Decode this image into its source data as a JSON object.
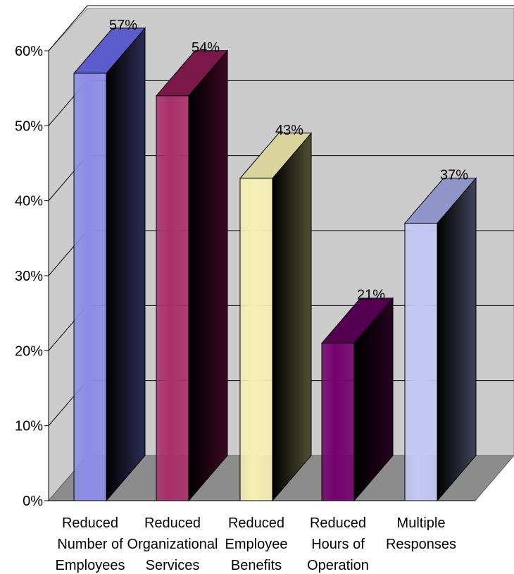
{
  "chart_data": {
    "type": "bar",
    "title": "",
    "xlabel": "",
    "ylabel": "",
    "categories": [
      [
        "Reduced",
        "Number of",
        "Employees"
      ],
      [
        "Reduced",
        "Organizational",
        "Services"
      ],
      [
        "Reduced",
        "Employee",
        "Benefits"
      ],
      [
        "Reduced",
        "Hours of",
        "Operation"
      ],
      [
        "Multiple",
        "Responses"
      ]
    ],
    "values": [
      57,
      54,
      43,
      21,
      37
    ],
    "data_labels": [
      "57%",
      "54%",
      "43%",
      "21%",
      "37%"
    ],
    "ylim": [
      0,
      60
    ],
    "yticks": [
      0,
      10,
      20,
      30,
      40,
      50,
      60
    ],
    "ytick_labels": [
      "0%",
      "10%",
      "20%",
      "30%",
      "40%",
      "50%",
      "60%"
    ],
    "grid": true,
    "legend": "none",
    "style": "3d-column",
    "colors": {
      "bar_fronts": [
        "#8c8ce8",
        "#a8306a",
        "#f4f0b4",
        "#74026e",
        "#c4c8f4"
      ],
      "bar_sides": [
        "#2c2c54",
        "#3c0820",
        "#505034",
        "#24001e",
        "#404458"
      ],
      "bar_tops": [
        "#5c5ccc",
        "#7c1848",
        "#d8d49c",
        "#540050",
        "#9094c8"
      ],
      "wall": "#cccccc",
      "floor": "#8c8c8c"
    }
  }
}
